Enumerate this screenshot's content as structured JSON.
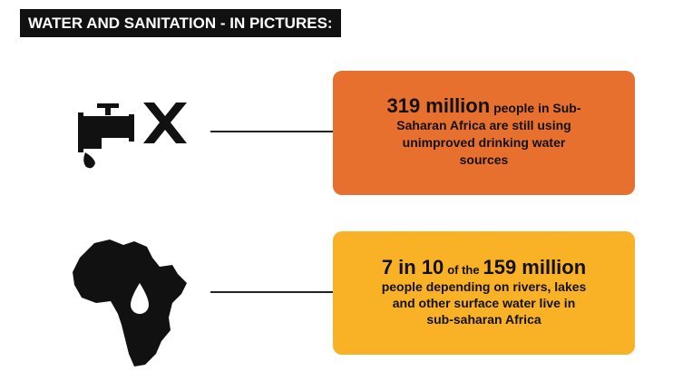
{
  "header": {
    "title": "WATER AND SANITATION - IN PICTURES:"
  },
  "panels": [
    {
      "highlight": "319 million",
      "text": "people in Sub-Saharan Africa are still using unimproved drinking water sources"
    },
    {
      "highlight_1": "7 in 10",
      "connector": "of the",
      "highlight_2": "159 million",
      "text": "people depending on rivers, lakes and other surface water live in sub-saharan Africa"
    }
  ]
}
